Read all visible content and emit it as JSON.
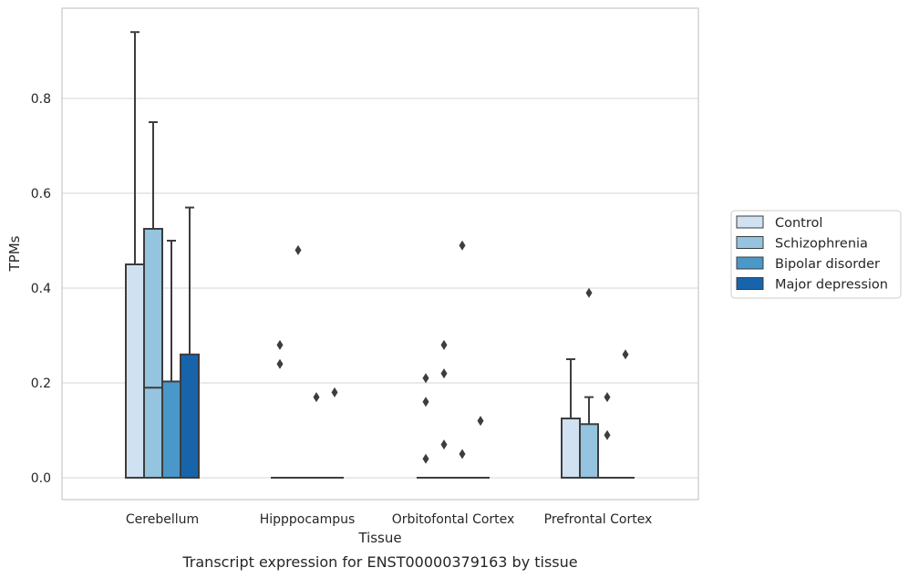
{
  "chart_data": {
    "type": "box",
    "xlabel": "Tissue",
    "ylabel": "TPMs",
    "caption": "Transcript expression for ENST00000379163 by tissue",
    "ylim": [
      -0.045,
      0.99
    ],
    "yticks": [
      0.0,
      0.2,
      0.4,
      0.6,
      0.8
    ],
    "ytick_labels": [
      "0.0",
      "0.2",
      "0.4",
      "0.6",
      "0.8"
    ],
    "grid": "horizontal",
    "legend_position": "right",
    "categories": [
      "Cerebellum",
      "Hipppocampus",
      "Orbitofontal Cortex",
      "Prefrontal Cortex"
    ],
    "series": [
      {
        "name": "Control",
        "color": "#d0e1f2",
        "boxes": [
          {
            "min": 0.0,
            "q1": 0.0,
            "median": 0.0,
            "q3": 0.45,
            "max": 0.94,
            "outliers": []
          },
          {
            "min": 0.0,
            "q1": 0.0,
            "median": 0.0,
            "q3": 0.0,
            "max": 0.0,
            "outliers": [
              0.28,
              0.24
            ]
          },
          {
            "min": 0.0,
            "q1": 0.0,
            "median": 0.0,
            "q3": 0.0,
            "max": 0.0,
            "outliers": [
              0.21,
              0.16,
              0.04
            ]
          },
          {
            "min": 0.0,
            "q1": 0.0,
            "median": 0.0,
            "q3": 0.125,
            "max": 0.25,
            "outliers": []
          }
        ]
      },
      {
        "name": "Schizophrenia",
        "color": "#94c4df",
        "boxes": [
          {
            "min": 0.0,
            "q1": 0.0,
            "median": 0.19,
            "q3": 0.525,
            "max": 0.75,
            "outliers": []
          },
          {
            "min": 0.0,
            "q1": 0.0,
            "median": 0.0,
            "q3": 0.0,
            "max": 0.0,
            "outliers": [
              0.48
            ]
          },
          {
            "min": 0.0,
            "q1": 0.0,
            "median": 0.0,
            "q3": 0.0,
            "max": 0.0,
            "outliers": [
              0.28,
              0.22,
              0.07
            ]
          },
          {
            "min": 0.0,
            "q1": 0.0,
            "median": 0.0,
            "q3": 0.113,
            "max": 0.17,
            "outliers": [
              0.39
            ]
          }
        ]
      },
      {
        "name": "Bipolar disorder",
        "color": "#4a98c9",
        "boxes": [
          {
            "min": 0.0,
            "q1": 0.0,
            "median": 0.0,
            "q3": 0.203,
            "max": 0.5,
            "outliers": []
          },
          {
            "min": 0.0,
            "q1": 0.0,
            "median": 0.0,
            "q3": 0.0,
            "max": 0.0,
            "outliers": [
              0.17
            ]
          },
          {
            "min": 0.0,
            "q1": 0.0,
            "median": 0.0,
            "q3": 0.0,
            "max": 0.0,
            "outliers": [
              0.49,
              0.05
            ]
          },
          {
            "min": 0.0,
            "q1": 0.0,
            "median": 0.0,
            "q3": 0.0,
            "max": 0.0,
            "outliers": [
              0.17,
              0.09
            ]
          }
        ]
      },
      {
        "name": "Major depression",
        "color": "#1764ab",
        "boxes": [
          {
            "min": 0.0,
            "q1": 0.0,
            "median": 0.0,
            "q3": 0.26,
            "max": 0.57,
            "outliers": []
          },
          {
            "min": 0.0,
            "q1": 0.0,
            "median": 0.0,
            "q3": 0.0,
            "max": 0.0,
            "outliers": [
              0.18
            ]
          },
          {
            "min": 0.0,
            "q1": 0.0,
            "median": 0.0,
            "q3": 0.0,
            "max": 0.0,
            "outliers": [
              0.12
            ]
          },
          {
            "min": 0.0,
            "q1": 0.0,
            "median": 0.0,
            "q3": 0.0,
            "max": 0.0,
            "outliers": [
              0.26
            ]
          }
        ]
      }
    ]
  }
}
